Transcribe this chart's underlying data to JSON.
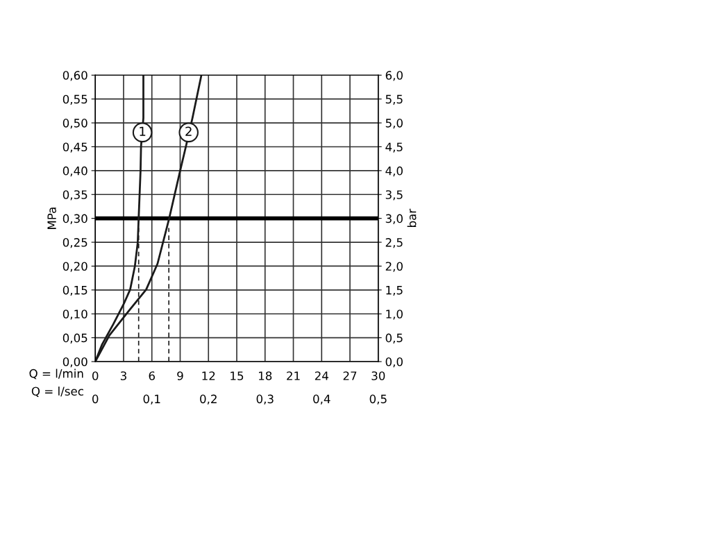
{
  "chart_data": {
    "type": "line",
    "ylabel": "MPa",
    "y2label": "bar",
    "xlabel": "Q = l/min",
    "x2label": "Q = l/sec",
    "xlim": [
      0,
      30
    ],
    "xticks": [
      0,
      3,
      6,
      9,
      12,
      15,
      18,
      21,
      24,
      27,
      30
    ],
    "x2lim": [
      0,
      0.5
    ],
    "x2ticks": [
      0,
      {
        "value": 0.1,
        "label": "0,1"
      },
      {
        "value": 0.2,
        "label": "0,2"
      },
      {
        "value": 0.3,
        "label": "0,3"
      },
      {
        "value": 0.4,
        "label": "0,4"
      },
      {
        "value": 0.5,
        "label": "0,5"
      }
    ],
    "ylim": [
      0,
      0.6
    ],
    "yticks": [
      {
        "value": 0,
        "label": "0,00"
      },
      {
        "value": 0.05,
        "label": "0,05"
      },
      {
        "value": 0.1,
        "label": "0,10"
      },
      {
        "value": 0.15,
        "label": "0,15"
      },
      {
        "value": 0.2,
        "label": "0,20"
      },
      {
        "value": 0.25,
        "label": "0,25"
      },
      {
        "value": 0.3,
        "label": "0,30"
      },
      {
        "value": 0.35,
        "label": "0,35"
      },
      {
        "value": 0.4,
        "label": "0,40"
      },
      {
        "value": 0.45,
        "label": "0,45"
      },
      {
        "value": 0.5,
        "label": "0,50"
      },
      {
        "value": 0.55,
        "label": "0,55"
      },
      {
        "value": 0.6,
        "label": "0,60"
      }
    ],
    "y2lim": [
      0,
      6
    ],
    "y2ticks": [
      {
        "value": 0,
        "label": "0,0"
      },
      {
        "value": 0.5,
        "label": "0,5"
      },
      {
        "value": 1,
        "label": "1,0"
      },
      {
        "value": 1.5,
        "label": "1,5"
      },
      {
        "value": 2,
        "label": "2,0"
      },
      {
        "value": 2.5,
        "label": "2,5"
      },
      {
        "value": 3,
        "label": "3,0"
      },
      {
        "value": 3.5,
        "label": "3,5"
      },
      {
        "value": 4,
        "label": "4,0"
      },
      {
        "value": 4.5,
        "label": "4,5"
      },
      {
        "value": 5,
        "label": "5,0"
      },
      {
        "value": 5.5,
        "label": "5,5"
      },
      {
        "value": 6,
        "label": "6,0"
      }
    ],
    "grid": true,
    "marker": "none",
    "line_style": "solid",
    "series": [
      {
        "color": "#1a1a1a",
        "x": [
          0,
          0.7,
          1.9,
          3.0,
          3.7,
          4.2,
          4.5,
          4.6,
          4.8,
          4.85,
          5.1,
          5.1
        ],
        "values": [
          0,
          0.035,
          0.078,
          0.12,
          0.151,
          0.2,
          0.249,
          0.3,
          0.4,
          0.45,
          0.51,
          0.6
        ]
      },
      {
        "color": "#1a1a1a",
        "x": [
          0,
          1.5,
          3.5,
          5.4,
          6.6,
          7.8,
          9.0,
          9.6,
          10.3,
          11.25
        ],
        "values": [
          0,
          0.055,
          0.105,
          0.151,
          0.205,
          0.297,
          0.4,
          0.45,
          0.51,
          0.6
        ]
      },
      {
        "color": "#1a1a1a",
        "line_style": "dashed",
        "x": [
          4.6,
          4.6
        ],
        "values": [
          0,
          0.28
        ]
      },
      {
        "color": "#1a1a1a",
        "line_style": "dashed",
        "x": [
          7.8,
          7.8
        ],
        "values": [
          0,
          0.28
        ]
      }
    ],
    "ref_lines": [
      {
        "axis": "y",
        "value": 0.3,
        "color": "#000000"
      }
    ],
    "annotations": [
      {
        "text": "1",
        "x": 5.0,
        "y": 0.48
      },
      {
        "text": "2",
        "x": 9.9,
        "y": 0.48
      }
    ]
  }
}
